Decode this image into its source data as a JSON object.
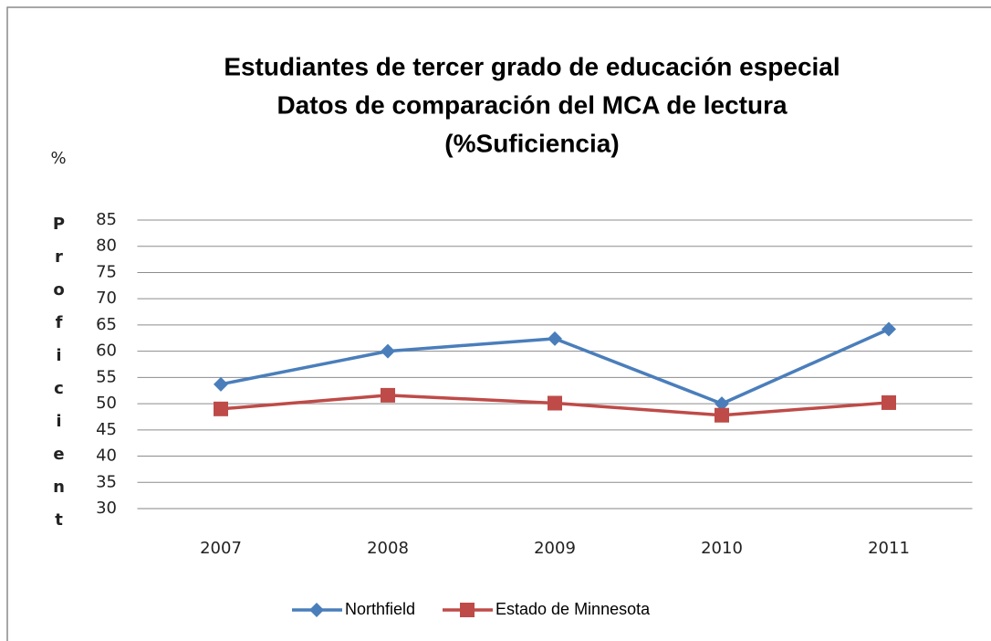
{
  "chart_data": {
    "type": "line",
    "title": [
      "Estudiantes de tercer grado de educación especial",
      "Datos de comparación del MCA de lectura",
      "(%Suficiencia)"
    ],
    "ylabel": [
      "%",
      "Proficient"
    ],
    "categories": [
      "2007",
      "2008",
      "2009",
      "2010",
      "2011"
    ],
    "series": [
      {
        "name": "Northfield",
        "color": "#4a7ebb",
        "marker": "diamond",
        "values": [
          53.7,
          60,
          62.4,
          50,
          64.2
        ]
      },
      {
        "name": "Estado de Minnesota",
        "color": "#be4b48",
        "marker": "square",
        "values": [
          49,
          51.6,
          50.1,
          47.8,
          50.2
        ]
      }
    ],
    "ylim": [
      30,
      85
    ],
    "yticks": [
      30,
      35,
      40,
      45,
      50,
      55,
      60,
      65,
      70,
      75,
      80,
      85
    ],
    "grid": true,
    "legend": "bottom"
  }
}
